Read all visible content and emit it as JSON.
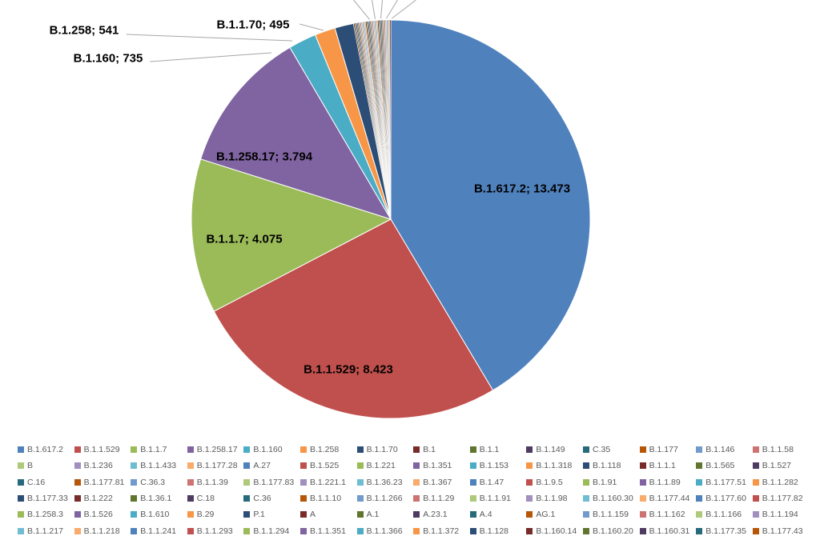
{
  "chart_data": {
    "type": "pie",
    "labels": [
      "B.1.617.2",
      "B.1.1.529",
      "B.1.1.7",
      "B.1.258.17",
      "B.1.160",
      "B.1.258",
      "B.1.1.70"
    ],
    "values": [
      13473,
      8423,
      4075,
      3794,
      735,
      541,
      495
    ],
    "data_labels": [
      "B.1.617.2; 13.473",
      "B.1.1.529; 8.423",
      "B.1.1.7; 4.075",
      "B.1.258.17; 3.794",
      "B.1.160; 735",
      "B.1.258; 541",
      "B.1.1.70; 495"
    ],
    "colors": [
      "#4F81BD",
      "#C0504D",
      "#9BBB59",
      "#8064A2",
      "#4BACC6",
      "#F79646",
      "#2C4D75"
    ],
    "small_slice_colors": [
      "#772C2A",
      "#5F7530",
      "#4D3B62",
      "#276A7C",
      "#B65708",
      "#729ACA",
      "#CD7371",
      "#AFC97A",
      "#A18FBF",
      "#6FBDD1",
      "#F9AB6B"
    ],
    "legend_placement": "bottom",
    "legend": [
      "B.1.617.2",
      "B.1.1.529",
      "B.1.1.7",
      "B.1.258.17",
      "B.1.160",
      "B.1.258",
      "B.1.1.70",
      "B.1",
      "B.1.1",
      "B.1.149",
      "C.35",
      "B.1.177",
      "B.1.146",
      "B.1.1.58",
      "B",
      "B.1.236",
      "B.1.1.433",
      "B.1.177.28",
      "A.27",
      "B.1.525",
      "B.1.221",
      "B.1.351",
      "B.1.153",
      "B.1.1.318",
      "B.1.118",
      "B.1.1.1",
      "B.1.565",
      "B.1.527",
      "C.16",
      "B.1.177.81",
      "C.36.3",
      "B.1.1.39",
      "B.1.177.83",
      "B.1.221.1",
      "B.1.36.23",
      "B.1.367",
      "B.1.47",
      "B.1.9.5",
      "B.1.91",
      "B.1.1.89",
      "B.1.177.51",
      "B.1.1.282",
      "B.1.177.33",
      "B.1.222",
      "B.1.36.1",
      "C.18",
      "C.36",
      "B.1.1.10",
      "B.1.1.266",
      "B.1.1.29",
      "B.1.1.91",
      "B.1.1.98",
      "B.1.160.30",
      "B.1.177.44",
      "B.1.177.60",
      "B.1.177.82",
      "B.1.258.3",
      "B.1.526",
      "B.1.610",
      "B.29",
      "P.1",
      "A",
      "A.1",
      "A.23.1",
      "A.4",
      "AG.1",
      "B.1.1.159",
      "B.1.1.162",
      "B.1.1.166",
      "B.1.1.194",
      "B.1.1.217",
      "B.1.1.218",
      "B.1.1.241",
      "B.1.1.293",
      "B.1.1.294",
      "B.1.1.351",
      "B.1.1.366",
      "B.1.1.372",
      "B.1.128",
      "B.1.160.14",
      "B.1.160.20",
      "B.1.160.31",
      "B.1.177.35",
      "B.1.177.43"
    ]
  }
}
